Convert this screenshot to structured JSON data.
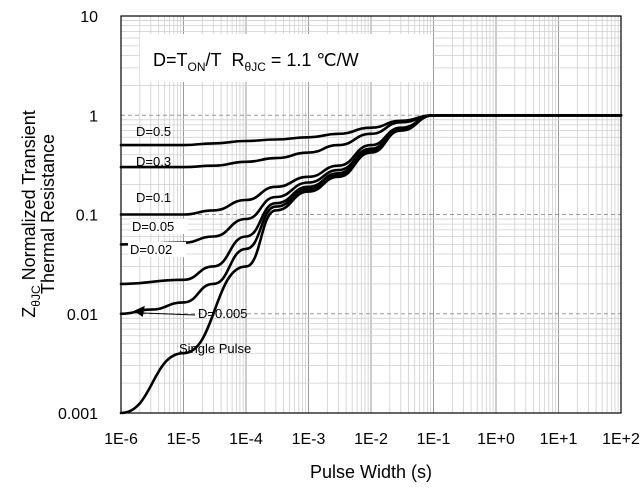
{
  "chart_data": {
    "type": "line",
    "title": "",
    "xlabel": "Pulse Width (s)",
    "ylabel": {
      "z": "Z",
      "sub": "θJC",
      "line1_rest": " Normalized Transient",
      "line2": "Thermal Resistance"
    },
    "annotation": {
      "d_eq": "D=T",
      "d_sub": "ON",
      "d_rest": "/T",
      "r": "R",
      "r_sub": "θJC",
      "r_rest": " = 1.1 ℃/W"
    },
    "x_scale": "log",
    "y_scale": "log",
    "xlim": [
      1e-06,
      100
    ],
    "ylim": [
      0.001,
      10
    ],
    "x_tick_labels": [
      "1E-6",
      "1E-5",
      "1E-4",
      "1E-3",
      "1E-2",
      "1E-1",
      "1E+0",
      "1E+1",
      "1E+2"
    ],
    "y_tick_labels": [
      "0.001",
      "0.01",
      "0.1",
      "1",
      "10"
    ],
    "grid": "major and minor (log decades)",
    "line_color": "#000000",
    "series": [
      {
        "name": "D=0.5",
        "points": [
          [
            1e-06,
            0.5
          ],
          [
            1e-05,
            0.5
          ],
          [
            3e-05,
            0.52
          ],
          [
            0.0001,
            0.55
          ],
          [
            0.0003,
            0.57
          ],
          [
            0.001,
            0.6
          ],
          [
            0.003,
            0.65
          ],
          [
            0.01,
            0.75
          ],
          [
            0.03,
            0.88
          ],
          [
            0.1,
            1.0
          ],
          [
            1,
            1.0
          ],
          [
            100,
            1.0
          ]
        ]
      },
      {
        "name": "D=0.3",
        "points": [
          [
            1e-06,
            0.3
          ],
          [
            1e-05,
            0.3
          ],
          [
            3e-05,
            0.31
          ],
          [
            0.0001,
            0.34
          ],
          [
            0.0003,
            0.37
          ],
          [
            0.001,
            0.42
          ],
          [
            0.003,
            0.5
          ],
          [
            0.01,
            0.65
          ],
          [
            0.03,
            0.85
          ],
          [
            0.1,
            1.0
          ],
          [
            100,
            1.0
          ]
        ]
      },
      {
        "name": "D=0.1",
        "points": [
          [
            1e-06,
            0.1
          ],
          [
            1e-05,
            0.1
          ],
          [
            3e-05,
            0.11
          ],
          [
            0.0001,
            0.14
          ],
          [
            0.0003,
            0.19
          ],
          [
            0.001,
            0.24
          ],
          [
            0.003,
            0.31
          ],
          [
            0.01,
            0.5
          ],
          [
            0.03,
            0.75
          ],
          [
            0.1,
            1.0
          ],
          [
            100,
            1.0
          ]
        ]
      },
      {
        "name": "D=0.05",
        "points": [
          [
            1e-06,
            0.05
          ],
          [
            1e-05,
            0.052
          ],
          [
            3e-05,
            0.06
          ],
          [
            0.0001,
            0.09
          ],
          [
            0.0003,
            0.15
          ],
          [
            0.001,
            0.21
          ],
          [
            0.003,
            0.28
          ],
          [
            0.01,
            0.46
          ],
          [
            0.03,
            0.73
          ],
          [
            0.1,
            1.0
          ],
          [
            100,
            1.0
          ]
        ]
      },
      {
        "name": "D=0.02",
        "points": [
          [
            1e-06,
            0.02
          ],
          [
            1e-05,
            0.022
          ],
          [
            3e-05,
            0.03
          ],
          [
            0.0001,
            0.06
          ],
          [
            0.0003,
            0.13
          ],
          [
            0.001,
            0.19
          ],
          [
            0.003,
            0.26
          ],
          [
            0.01,
            0.44
          ],
          [
            0.03,
            0.72
          ],
          [
            0.1,
            1.0
          ],
          [
            100,
            1.0
          ]
        ]
      },
      {
        "name": "D=0.005",
        "points": [
          [
            1e-06,
            0.01
          ],
          [
            3e-06,
            0.011
          ],
          [
            1e-05,
            0.013
          ],
          [
            3e-05,
            0.02
          ],
          [
            0.0001,
            0.045
          ],
          [
            0.0003,
            0.12
          ],
          [
            0.001,
            0.18
          ],
          [
            0.003,
            0.25
          ],
          [
            0.01,
            0.43
          ],
          [
            0.03,
            0.71
          ],
          [
            0.1,
            1.0
          ],
          [
            100,
            1.0
          ]
        ]
      },
      {
        "name": "Single Pulse",
        "points": [
          [
            1e-06,
            0.001
          ],
          [
            1e-05,
            0.004
          ],
          [
            0.0001,
            0.03
          ],
          [
            0.0003,
            0.11
          ],
          [
            0.001,
            0.17
          ],
          [
            0.003,
            0.24
          ],
          [
            0.01,
            0.42
          ],
          [
            0.03,
            0.7
          ],
          [
            0.1,
            1.0
          ],
          [
            100,
            1.0
          ]
        ]
      }
    ]
  }
}
